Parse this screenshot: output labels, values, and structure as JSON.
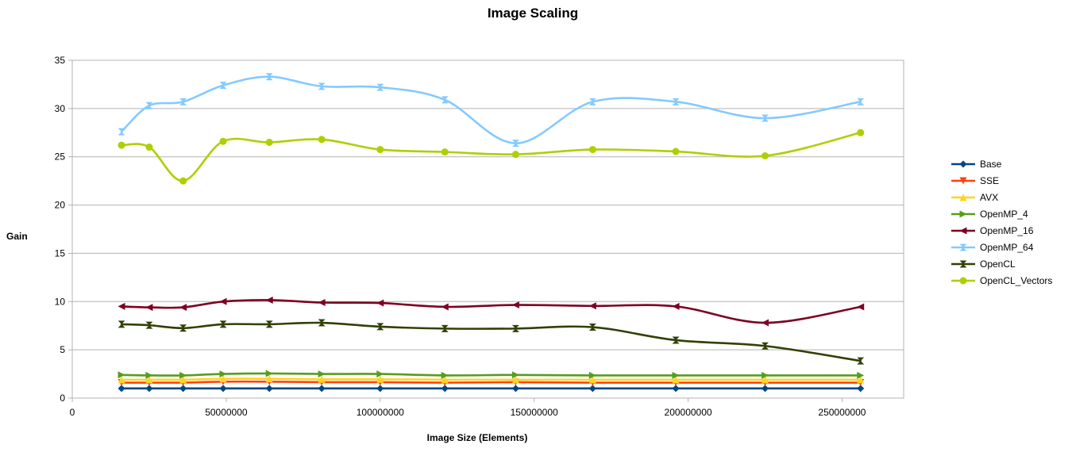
{
  "chart_data": {
    "type": "line",
    "title": "Image Scaling",
    "xlabel": "Image Size (Elements)",
    "ylabel": "Gain",
    "xlim": [
      0,
      270000000
    ],
    "ylim": [
      0,
      35
    ],
    "x_ticks": [
      0,
      50000000,
      100000000,
      150000000,
      200000000,
      250000000
    ],
    "x_tick_labels": [
      "0",
      "50000000",
      "100000000",
      "150000000",
      "200000000",
      "250000000"
    ],
    "y_ticks": [
      0,
      5,
      10,
      15,
      20,
      25,
      30,
      35
    ],
    "y_tick_labels": [
      "0",
      "5",
      "10",
      "15",
      "20",
      "25",
      "30",
      "35"
    ],
    "grid": "horizontal",
    "legend_position": "right",
    "x": [
      16000000,
      25000000,
      36000000,
      49000000,
      64000000,
      81000000,
      100000000,
      121000000,
      144000000,
      169000000,
      196000000,
      225000000,
      256000000
    ],
    "series": [
      {
        "name": "Base",
        "color": "#004586",
        "marker": "diamond",
        "values": [
          1,
          1,
          1,
          1,
          1,
          1,
          1,
          1,
          1,
          1,
          1,
          1,
          1
        ]
      },
      {
        "name": "SSE",
        "color": "#ff420e",
        "marker": "triangle-down",
        "values": [
          1.6,
          1.6,
          1.6,
          1.7,
          1.7,
          1.65,
          1.65,
          1.6,
          1.65,
          1.6,
          1.6,
          1.6,
          1.6
        ]
      },
      {
        "name": "AVX",
        "color": "#ffd320",
        "marker": "triangle-up",
        "values": [
          1.9,
          1.9,
          1.9,
          2.0,
          2.0,
          1.95,
          1.95,
          1.9,
          1.9,
          1.9,
          1.9,
          1.9,
          1.9
        ]
      },
      {
        "name": "OpenMP_4",
        "color": "#579d1c",
        "marker": "triangle-right",
        "values": [
          2.4,
          2.35,
          2.35,
          2.5,
          2.55,
          2.5,
          2.5,
          2.35,
          2.4,
          2.35,
          2.35,
          2.35,
          2.35
        ]
      },
      {
        "name": "OpenMP_16",
        "color": "#7e0021",
        "marker": "triangle-left",
        "values": [
          9.5,
          9.4,
          9.4,
          10.0,
          10.15,
          9.9,
          9.85,
          9.45,
          9.65,
          9.55,
          9.5,
          7.8,
          9.45
        ]
      },
      {
        "name": "OpenMP_64",
        "color": "#83caff",
        "marker": "bowtie",
        "values": [
          27.6,
          30.3,
          30.7,
          32.4,
          33.3,
          32.3,
          32.2,
          30.9,
          26.4,
          30.7,
          30.7,
          29.0,
          30.7
        ]
      },
      {
        "name": "OpenCL",
        "color": "#314004",
        "marker": "hourglass",
        "values": [
          7.65,
          7.55,
          7.25,
          7.65,
          7.65,
          7.8,
          7.4,
          7.2,
          7.2,
          7.35,
          6.0,
          5.4,
          3.85
        ]
      },
      {
        "name": "OpenCL_Vectors",
        "color": "#aecf00",
        "marker": "circle",
        "values": [
          26.2,
          26.0,
          22.5,
          26.6,
          26.5,
          26.8,
          25.75,
          25.5,
          25.25,
          25.75,
          25.55,
          25.1,
          27.5
        ]
      }
    ]
  }
}
